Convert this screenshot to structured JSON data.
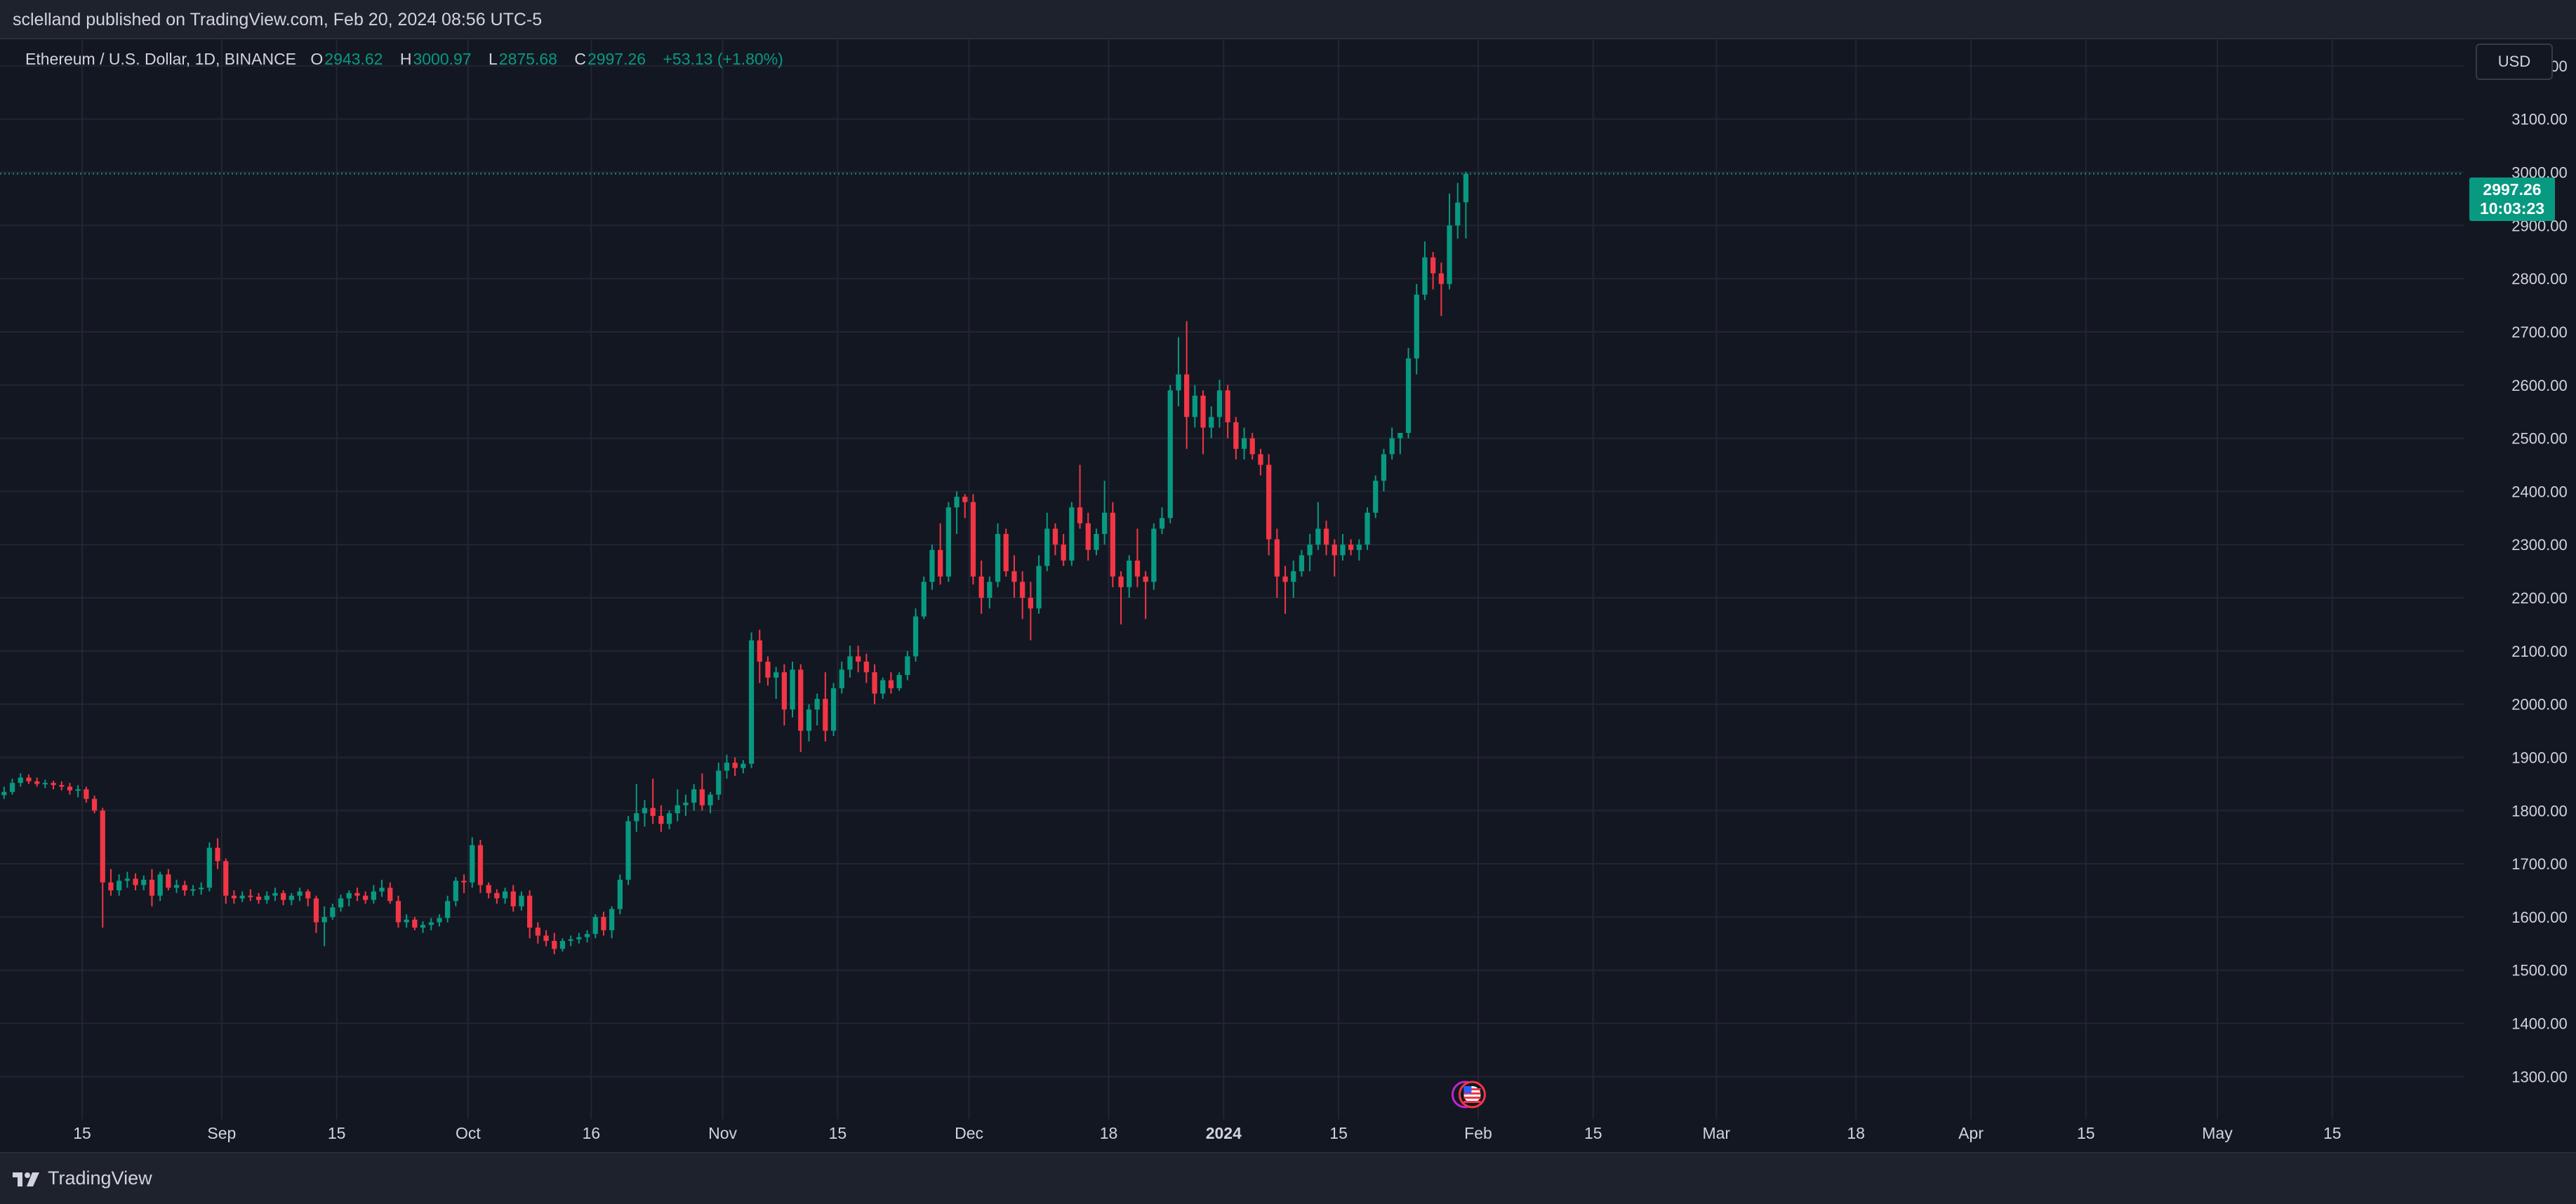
{
  "header": {
    "published": "sclelland published on TradingView.com, Feb 20, 2024 08:56 UTC-5"
  },
  "legend": {
    "symbol": "Ethereum / U.S. Dollar, 1D, BINANCE",
    "open_label": "O",
    "open": "2943.62",
    "high_label": "H",
    "high": "3000.97",
    "low_label": "L",
    "low": "2875.68",
    "close_label": "C",
    "close": "2997.26",
    "change": "+53.13 (+1.80%)"
  },
  "currency_button": "USD",
  "price_tag": {
    "price": "2997.26",
    "countdown": "10:03:23"
  },
  "footer": {
    "brand": "TradingView"
  },
  "event_marker": {
    "icon": "us-flag-icon"
  },
  "colors": {
    "up": "#089981",
    "down": "#f23645",
    "background": "#131722",
    "panel": "#1e222d",
    "grid": "#232632",
    "text": "#d1d4dc",
    "accent_event": "#c026d3"
  },
  "chart_data": {
    "type": "candlestick",
    "series": [
      {
        "name": "Ethereum / U.S. Dollar, 1D, BINANCE"
      }
    ],
    "x_start": "2023-08-05",
    "x_end": "2024-05-31",
    "ylim": [
      1220,
      3250
    ],
    "y_ticks": [
      3200,
      3100,
      3000,
      2900,
      2800,
      2700,
      2600,
      2500,
      2400,
      2300,
      2200,
      2100,
      2000,
      1900,
      1800,
      1700,
      1600,
      1500,
      1400,
      1300
    ],
    "y_tick_labels": [
      "3200.00",
      "3100.00",
      "3000.00",
      "2900.00",
      "2800.00",
      "2700.00",
      "2600.00",
      "2500.00",
      "2400.00",
      "2300.00",
      "2200.00",
      "2100.00",
      "2000.00",
      "1900.00",
      "1800.00",
      "1700.00",
      "1600.00",
      "1500.00",
      "1400.00",
      "1300.00"
    ],
    "x_ticks": [
      {
        "date": "2023-08-15",
        "label": "15",
        "bold": false
      },
      {
        "date": "2023-09-01",
        "label": "Sep",
        "bold": false
      },
      {
        "date": "2023-09-15",
        "label": "15",
        "bold": false
      },
      {
        "date": "2023-10-01",
        "label": "Oct",
        "bold": false
      },
      {
        "date": "2023-10-16",
        "label": "16",
        "bold": false
      },
      {
        "date": "2023-11-01",
        "label": "Nov",
        "bold": false
      },
      {
        "date": "2023-11-15",
        "label": "15",
        "bold": false
      },
      {
        "date": "2023-12-01",
        "label": "Dec",
        "bold": false
      },
      {
        "date": "2023-12-18",
        "label": "18",
        "bold": false
      },
      {
        "date": "2024-01-01",
        "label": "2024",
        "bold": true
      },
      {
        "date": "2024-01-15",
        "label": "15",
        "bold": false
      },
      {
        "date": "2024-02-01",
        "label": "Feb",
        "bold": false
      },
      {
        "date": "2024-02-15",
        "label": "15",
        "bold": false
      },
      {
        "date": "2024-03-01",
        "label": "Mar",
        "bold": false
      },
      {
        "date": "2024-03-18",
        "label": "18",
        "bold": false
      },
      {
        "date": "2024-04-01",
        "label": "Apr",
        "bold": false
      },
      {
        "date": "2024-04-15",
        "label": "15",
        "bold": false
      },
      {
        "date": "2024-05-01",
        "label": "May",
        "bold": false
      },
      {
        "date": "2024-05-15",
        "label": "15",
        "bold": false
      }
    ],
    "last_price": 2997.26,
    "candles_start_date": "2023-08-05",
    "candles": [
      [
        1829,
        1845,
        1822,
        1835
      ],
      [
        1835,
        1860,
        1830,
        1852
      ],
      [
        1852,
        1870,
        1845,
        1862
      ],
      [
        1862,
        1868,
        1850,
        1855
      ],
      [
        1855,
        1862,
        1845,
        1850
      ],
      [
        1850,
        1858,
        1842,
        1852
      ],
      [
        1852,
        1856,
        1840,
        1848
      ],
      [
        1848,
        1855,
        1838,
        1845
      ],
      [
        1845,
        1852,
        1830,
        1838
      ],
      [
        1838,
        1848,
        1825,
        1840
      ],
      [
        1840,
        1845,
        1815,
        1822
      ],
      [
        1822,
        1828,
        1795,
        1800
      ],
      [
        1800,
        1805,
        1580,
        1665
      ],
      [
        1665,
        1690,
        1640,
        1650
      ],
      [
        1650,
        1680,
        1640,
        1668
      ],
      [
        1668,
        1685,
        1655,
        1672
      ],
      [
        1672,
        1682,
        1650,
        1660
      ],
      [
        1660,
        1678,
        1650,
        1670
      ],
      [
        1670,
        1690,
        1620,
        1640
      ],
      [
        1640,
        1685,
        1630,
        1680
      ],
      [
        1680,
        1690,
        1650,
        1655
      ],
      [
        1655,
        1670,
        1645,
        1660
      ],
      [
        1660,
        1668,
        1640,
        1650
      ],
      [
        1650,
        1660,
        1640,
        1652
      ],
      [
        1652,
        1665,
        1642,
        1655
      ],
      [
        1655,
        1740,
        1648,
        1730
      ],
      [
        1730,
        1748,
        1690,
        1705
      ],
      [
        1705,
        1710,
        1625,
        1640
      ],
      [
        1640,
        1650,
        1625,
        1635
      ],
      [
        1635,
        1648,
        1628,
        1640
      ],
      [
        1640,
        1652,
        1630,
        1638
      ],
      [
        1638,
        1645,
        1625,
        1632
      ],
      [
        1632,
        1648,
        1625,
        1640
      ],
      [
        1640,
        1655,
        1630,
        1645
      ],
      [
        1645,
        1650,
        1622,
        1632
      ],
      [
        1632,
        1645,
        1622,
        1640
      ],
      [
        1640,
        1655,
        1630,
        1648
      ],
      [
        1648,
        1652,
        1620,
        1635
      ],
      [
        1635,
        1640,
        1570,
        1590
      ],
      [
        1590,
        1620,
        1545,
        1600
      ],
      [
        1600,
        1625,
        1595,
        1618
      ],
      [
        1618,
        1642,
        1610,
        1635
      ],
      [
        1635,
        1650,
        1620,
        1645
      ],
      [
        1645,
        1655,
        1630,
        1640
      ],
      [
        1640,
        1648,
        1625,
        1632
      ],
      [
        1632,
        1660,
        1625,
        1648
      ],
      [
        1648,
        1670,
        1638,
        1655
      ],
      [
        1655,
        1665,
        1625,
        1630
      ],
      [
        1630,
        1640,
        1580,
        1590
      ],
      [
        1590,
        1605,
        1580,
        1595
      ],
      [
        1595,
        1600,
        1575,
        1580
      ],
      [
        1580,
        1592,
        1570,
        1585
      ],
      [
        1585,
        1598,
        1575,
        1590
      ],
      [
        1590,
        1605,
        1582,
        1598
      ],
      [
        1598,
        1640,
        1590,
        1630
      ],
      [
        1630,
        1675,
        1620,
        1668
      ],
      [
        1668,
        1680,
        1645,
        1665
      ],
      [
        1665,
        1750,
        1655,
        1735
      ],
      [
        1735,
        1745,
        1645,
        1660
      ],
      [
        1660,
        1665,
        1635,
        1645
      ],
      [
        1645,
        1652,
        1625,
        1635
      ],
      [
        1635,
        1655,
        1625,
        1648
      ],
      [
        1648,
        1660,
        1610,
        1620
      ],
      [
        1620,
        1648,
        1612,
        1640
      ],
      [
        1640,
        1650,
        1560,
        1580
      ],
      [
        1580,
        1590,
        1550,
        1565
      ],
      [
        1565,
        1575,
        1545,
        1555
      ],
      [
        1555,
        1570,
        1530,
        1540
      ],
      [
        1540,
        1560,
        1535,
        1555
      ],
      [
        1555,
        1565,
        1545,
        1558
      ],
      [
        1558,
        1570,
        1550,
        1562
      ],
      [
        1562,
        1575,
        1552,
        1568
      ],
      [
        1568,
        1605,
        1560,
        1600
      ],
      [
        1600,
        1610,
        1565,
        1575
      ],
      [
        1575,
        1620,
        1560,
        1615
      ],
      [
        1615,
        1680,
        1605,
        1670
      ],
      [
        1670,
        1790,
        1660,
        1780
      ],
      [
        1780,
        1850,
        1760,
        1795
      ],
      [
        1795,
        1820,
        1770,
        1805
      ],
      [
        1805,
        1860,
        1775,
        1790
      ],
      [
        1790,
        1810,
        1760,
        1775
      ],
      [
        1775,
        1800,
        1765,
        1795
      ],
      [
        1795,
        1840,
        1780,
        1810
      ],
      [
        1810,
        1830,
        1790,
        1815
      ],
      [
        1815,
        1850,
        1800,
        1840
      ],
      [
        1840,
        1870,
        1800,
        1810
      ],
      [
        1810,
        1835,
        1795,
        1830
      ],
      [
        1830,
        1890,
        1820,
        1875
      ],
      [
        1875,
        1905,
        1860,
        1890
      ],
      [
        1890,
        1900,
        1865,
        1880
      ],
      [
        1880,
        1895,
        1870,
        1888
      ],
      [
        1888,
        2135,
        1880,
        2120
      ],
      [
        2120,
        2140,
        2040,
        2080
      ],
      [
        2080,
        2090,
        2035,
        2050
      ],
      [
        2050,
        2070,
        2010,
        2060
      ],
      [
        2060,
        2075,
        1960,
        1990
      ],
      [
        1990,
        2080,
        1975,
        2065
      ],
      [
        2065,
        2075,
        1910,
        1950
      ],
      [
        1950,
        2000,
        1930,
        1990
      ],
      [
        1990,
        2020,
        1960,
        2010
      ],
      [
        2010,
        2060,
        1930,
        1950
      ],
      [
        1950,
        2040,
        1940,
        2030
      ],
      [
        2030,
        2080,
        2020,
        2065
      ],
      [
        2065,
        2110,
        2050,
        2090
      ],
      [
        2090,
        2110,
        2060,
        2080
      ],
      [
        2080,
        2095,
        2040,
        2060
      ],
      [
        2060,
        2075,
        2000,
        2020
      ],
      [
        2020,
        2050,
        2010,
        2045
      ],
      [
        2045,
        2060,
        2020,
        2030
      ],
      [
        2030,
        2060,
        2025,
        2055
      ],
      [
        2055,
        2100,
        2045,
        2090
      ],
      [
        2090,
        2180,
        2080,
        2165
      ],
      [
        2165,
        2240,
        2160,
        2230
      ],
      [
        2230,
        2300,
        2215,
        2290
      ],
      [
        2290,
        2340,
        2225,
        2240
      ],
      [
        2240,
        2380,
        2230,
        2370
      ],
      [
        2370,
        2400,
        2320,
        2390
      ],
      [
        2390,
        2395,
        2350,
        2380
      ],
      [
        2380,
        2395,
        2225,
        2240
      ],
      [
        2240,
        2270,
        2170,
        2200
      ],
      [
        2200,
        2240,
        2180,
        2230
      ],
      [
        2230,
        2340,
        2220,
        2320
      ],
      [
        2320,
        2330,
        2240,
        2250
      ],
      [
        2250,
        2280,
        2200,
        2230
      ],
      [
        2230,
        2250,
        2160,
        2200
      ],
      [
        2200,
        2230,
        2120,
        2180
      ],
      [
        2180,
        2280,
        2170,
        2260
      ],
      [
        2260,
        2360,
        2250,
        2330
      ],
      [
        2330,
        2340,
        2280,
        2300
      ],
      [
        2300,
        2320,
        2260,
        2270
      ],
      [
        2270,
        2380,
        2260,
        2370
      ],
      [
        2370,
        2450,
        2330,
        2340
      ],
      [
        2340,
        2360,
        2270,
        2290
      ],
      [
        2290,
        2330,
        2280,
        2320
      ],
      [
        2320,
        2420,
        2300,
        2360
      ],
      [
        2360,
        2380,
        2220,
        2240
      ],
      [
        2240,
        2250,
        2150,
        2220
      ],
      [
        2220,
        2280,
        2200,
        2270
      ],
      [
        2270,
        2330,
        2220,
        2240
      ],
      [
        2240,
        2250,
        2160,
        2230
      ],
      [
        2230,
        2340,
        2215,
        2330
      ],
      [
        2330,
        2370,
        2320,
        2350
      ],
      [
        2350,
        2600,
        2340,
        2590
      ],
      [
        2590,
        2690,
        2560,
        2620
      ],
      [
        2620,
        2720,
        2480,
        2540
      ],
      [
        2540,
        2600,
        2520,
        2580
      ],
      [
        2580,
        2590,
        2470,
        2520
      ],
      [
        2520,
        2560,
        2500,
        2540
      ],
      [
        2540,
        2610,
        2520,
        2590
      ],
      [
        2590,
        2600,
        2500,
        2530
      ],
      [
        2530,
        2540,
        2460,
        2480
      ],
      [
        2480,
        2520,
        2460,
        2500
      ],
      [
        2500,
        2510,
        2460,
        2470
      ],
      [
        2470,
        2480,
        2430,
        2450
      ],
      [
        2450,
        2470,
        2280,
        2310
      ],
      [
        2310,
        2330,
        2200,
        2240
      ],
      [
        2240,
        2260,
        2170,
        2230
      ],
      [
        2230,
        2270,
        2200,
        2250
      ],
      [
        2250,
        2290,
        2240,
        2280
      ],
      [
        2280,
        2320,
        2250,
        2300
      ],
      [
        2300,
        2380,
        2290,
        2330
      ],
      [
        2330,
        2345,
        2280,
        2300
      ],
      [
        2300,
        2310,
        2240,
        2280
      ],
      [
        2280,
        2320,
        2270,
        2300
      ],
      [
        2300,
        2310,
        2280,
        2290
      ],
      [
        2290,
        2310,
        2270,
        2300
      ],
      [
        2300,
        2370,
        2290,
        2360
      ],
      [
        2360,
        2430,
        2350,
        2420
      ],
      [
        2420,
        2480,
        2400,
        2470
      ],
      [
        2470,
        2520,
        2460,
        2500
      ],
      [
        2500,
        2510,
        2470,
        2510
      ],
      [
        2510,
        2670,
        2500,
        2650
      ],
      [
        2650,
        2790,
        2620,
        2770
      ],
      [
        2770,
        2870,
        2760,
        2840
      ],
      [
        2840,
        2850,
        2780,
        2810
      ],
      [
        2810,
        2830,
        2730,
        2790
      ],
      [
        2790,
        2960,
        2780,
        2900
      ],
      [
        2900,
        2980,
        2875,
        2943
      ],
      [
        2943.62,
        3000.97,
        2875.68,
        2997.26
      ]
    ]
  }
}
